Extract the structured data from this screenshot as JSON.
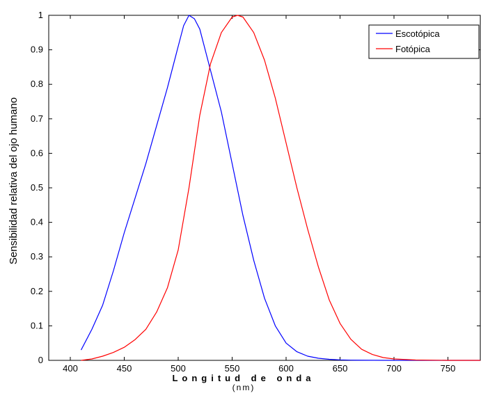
{
  "chart_data": {
    "type": "line",
    "xlabel": "Longitud de onda",
    "xunit": "(nm)",
    "ylabel": "Sensibilidad relativa del ojo humano",
    "xlim": [
      380,
      780
    ],
    "ylim": [
      0,
      1
    ],
    "xticks": [
      400,
      450,
      500,
      550,
      600,
      650,
      700,
      750
    ],
    "yticks": [
      0,
      0.1,
      0.2,
      0.3,
      0.4,
      0.5,
      0.6,
      0.7,
      0.8,
      0.9,
      1
    ],
    "ytick_labels": [
      "0",
      "0.1",
      "0.2",
      "0.3",
      "0.4",
      "0.5",
      "0.6",
      "0.7",
      "0.8",
      "0.9",
      "1"
    ],
    "grid": false,
    "legend_position": "top-right",
    "series": [
      {
        "name": "Escotópica",
        "color": "#0000ff",
        "x": [
          410,
          420,
          430,
          440,
          450,
          460,
          470,
          480,
          490,
          500,
          505,
          510,
          515,
          520,
          530,
          540,
          550,
          560,
          570,
          580,
          590,
          600,
          610,
          620,
          630,
          640,
          650,
          660,
          680,
          700,
          750,
          780
        ],
        "y": [
          0.03,
          0.09,
          0.16,
          0.26,
          0.37,
          0.47,
          0.57,
          0.68,
          0.79,
          0.91,
          0.97,
          1.0,
          0.99,
          0.96,
          0.84,
          0.72,
          0.57,
          0.42,
          0.29,
          0.18,
          0.1,
          0.05,
          0.025,
          0.012,
          0.006,
          0.003,
          0.0015,
          0.0007,
          0.0002,
          0.0,
          0.0,
          0.0
        ]
      },
      {
        "name": "Fotópica",
        "color": "#ff0000",
        "x": [
          410,
          420,
          430,
          440,
          450,
          460,
          470,
          480,
          490,
          500,
          510,
          520,
          530,
          540,
          550,
          555,
          560,
          570,
          580,
          590,
          600,
          610,
          620,
          630,
          640,
          650,
          660,
          670,
          680,
          690,
          700,
          720,
          750,
          780
        ],
        "y": [
          0.0,
          0.004,
          0.012,
          0.023,
          0.038,
          0.06,
          0.09,
          0.14,
          0.21,
          0.32,
          0.5,
          0.71,
          0.86,
          0.95,
          0.995,
          1.0,
          0.995,
          0.95,
          0.87,
          0.76,
          0.63,
          0.5,
          0.38,
          0.27,
          0.175,
          0.107,
          0.061,
          0.032,
          0.017,
          0.008,
          0.004,
          0.001,
          0.0,
          0.0
        ]
      }
    ]
  }
}
